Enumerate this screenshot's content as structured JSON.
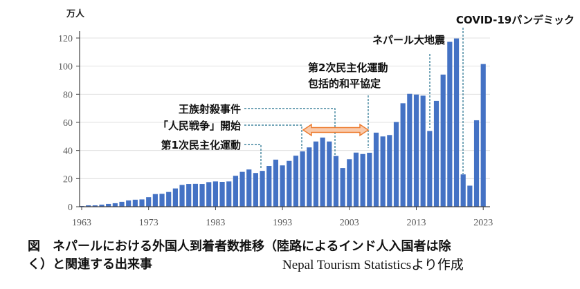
{
  "chart_data": {
    "type": "bar",
    "title": "",
    "ylabel": "万人",
    "xlabel": "",
    "ylim": [
      0,
      120
    ],
    "yticks": [
      "0",
      "20",
      "40",
      "60",
      "80",
      "100",
      "120"
    ],
    "xticks": [
      "1963",
      "1973",
      "1983",
      "1993",
      "2003",
      "2013",
      "2023"
    ],
    "grid": true,
    "color": "#4472C4",
    "start_year": 1963,
    "values": [
      0.5,
      1,
      1,
      1.5,
      2,
      2.5,
      3.5,
      4.5,
      5,
      5.2,
      6.8,
      9,
      9.2,
      10.5,
      13,
      15.5,
      16.2,
      16.3,
      16.2,
      17.5,
      18,
      17.7,
      18,
      22,
      24.8,
      26.5,
      24,
      25.5,
      29,
      33.5,
      29.4,
      32.6,
      36.3,
      39.4,
      42.2,
      46.4,
      49.2,
      46.4,
      36.1,
      27.5,
      33.8,
      38.5,
      37.5,
      38.4,
      52.7,
      50,
      51,
      60.3,
      73.6,
      80.3,
      79.8,
      79,
      53.9,
      75.3,
      94,
      117.3,
      119.7,
      23,
      15,
      61.5,
      101.5
    ],
    "annotations": {
      "covid": "COVID-19パンデミック",
      "earthquake": "ネパール大地震",
      "democracy2": "第2次民主化運動",
      "peace": "包括的和平協定",
      "royal": "王族射殺事件",
      "peoples_war": "「人民戦争」開始",
      "democracy1": "第1次民主化運動"
    },
    "accent": "#ED7D31"
  },
  "caption": {
    "line1": "図　ネパールにおける外国人到着者数推移（陸路によるインド人入国者は除",
    "line2": "く）と関連する出来事",
    "source": "Nepal Tourism Statisticsより作成"
  }
}
